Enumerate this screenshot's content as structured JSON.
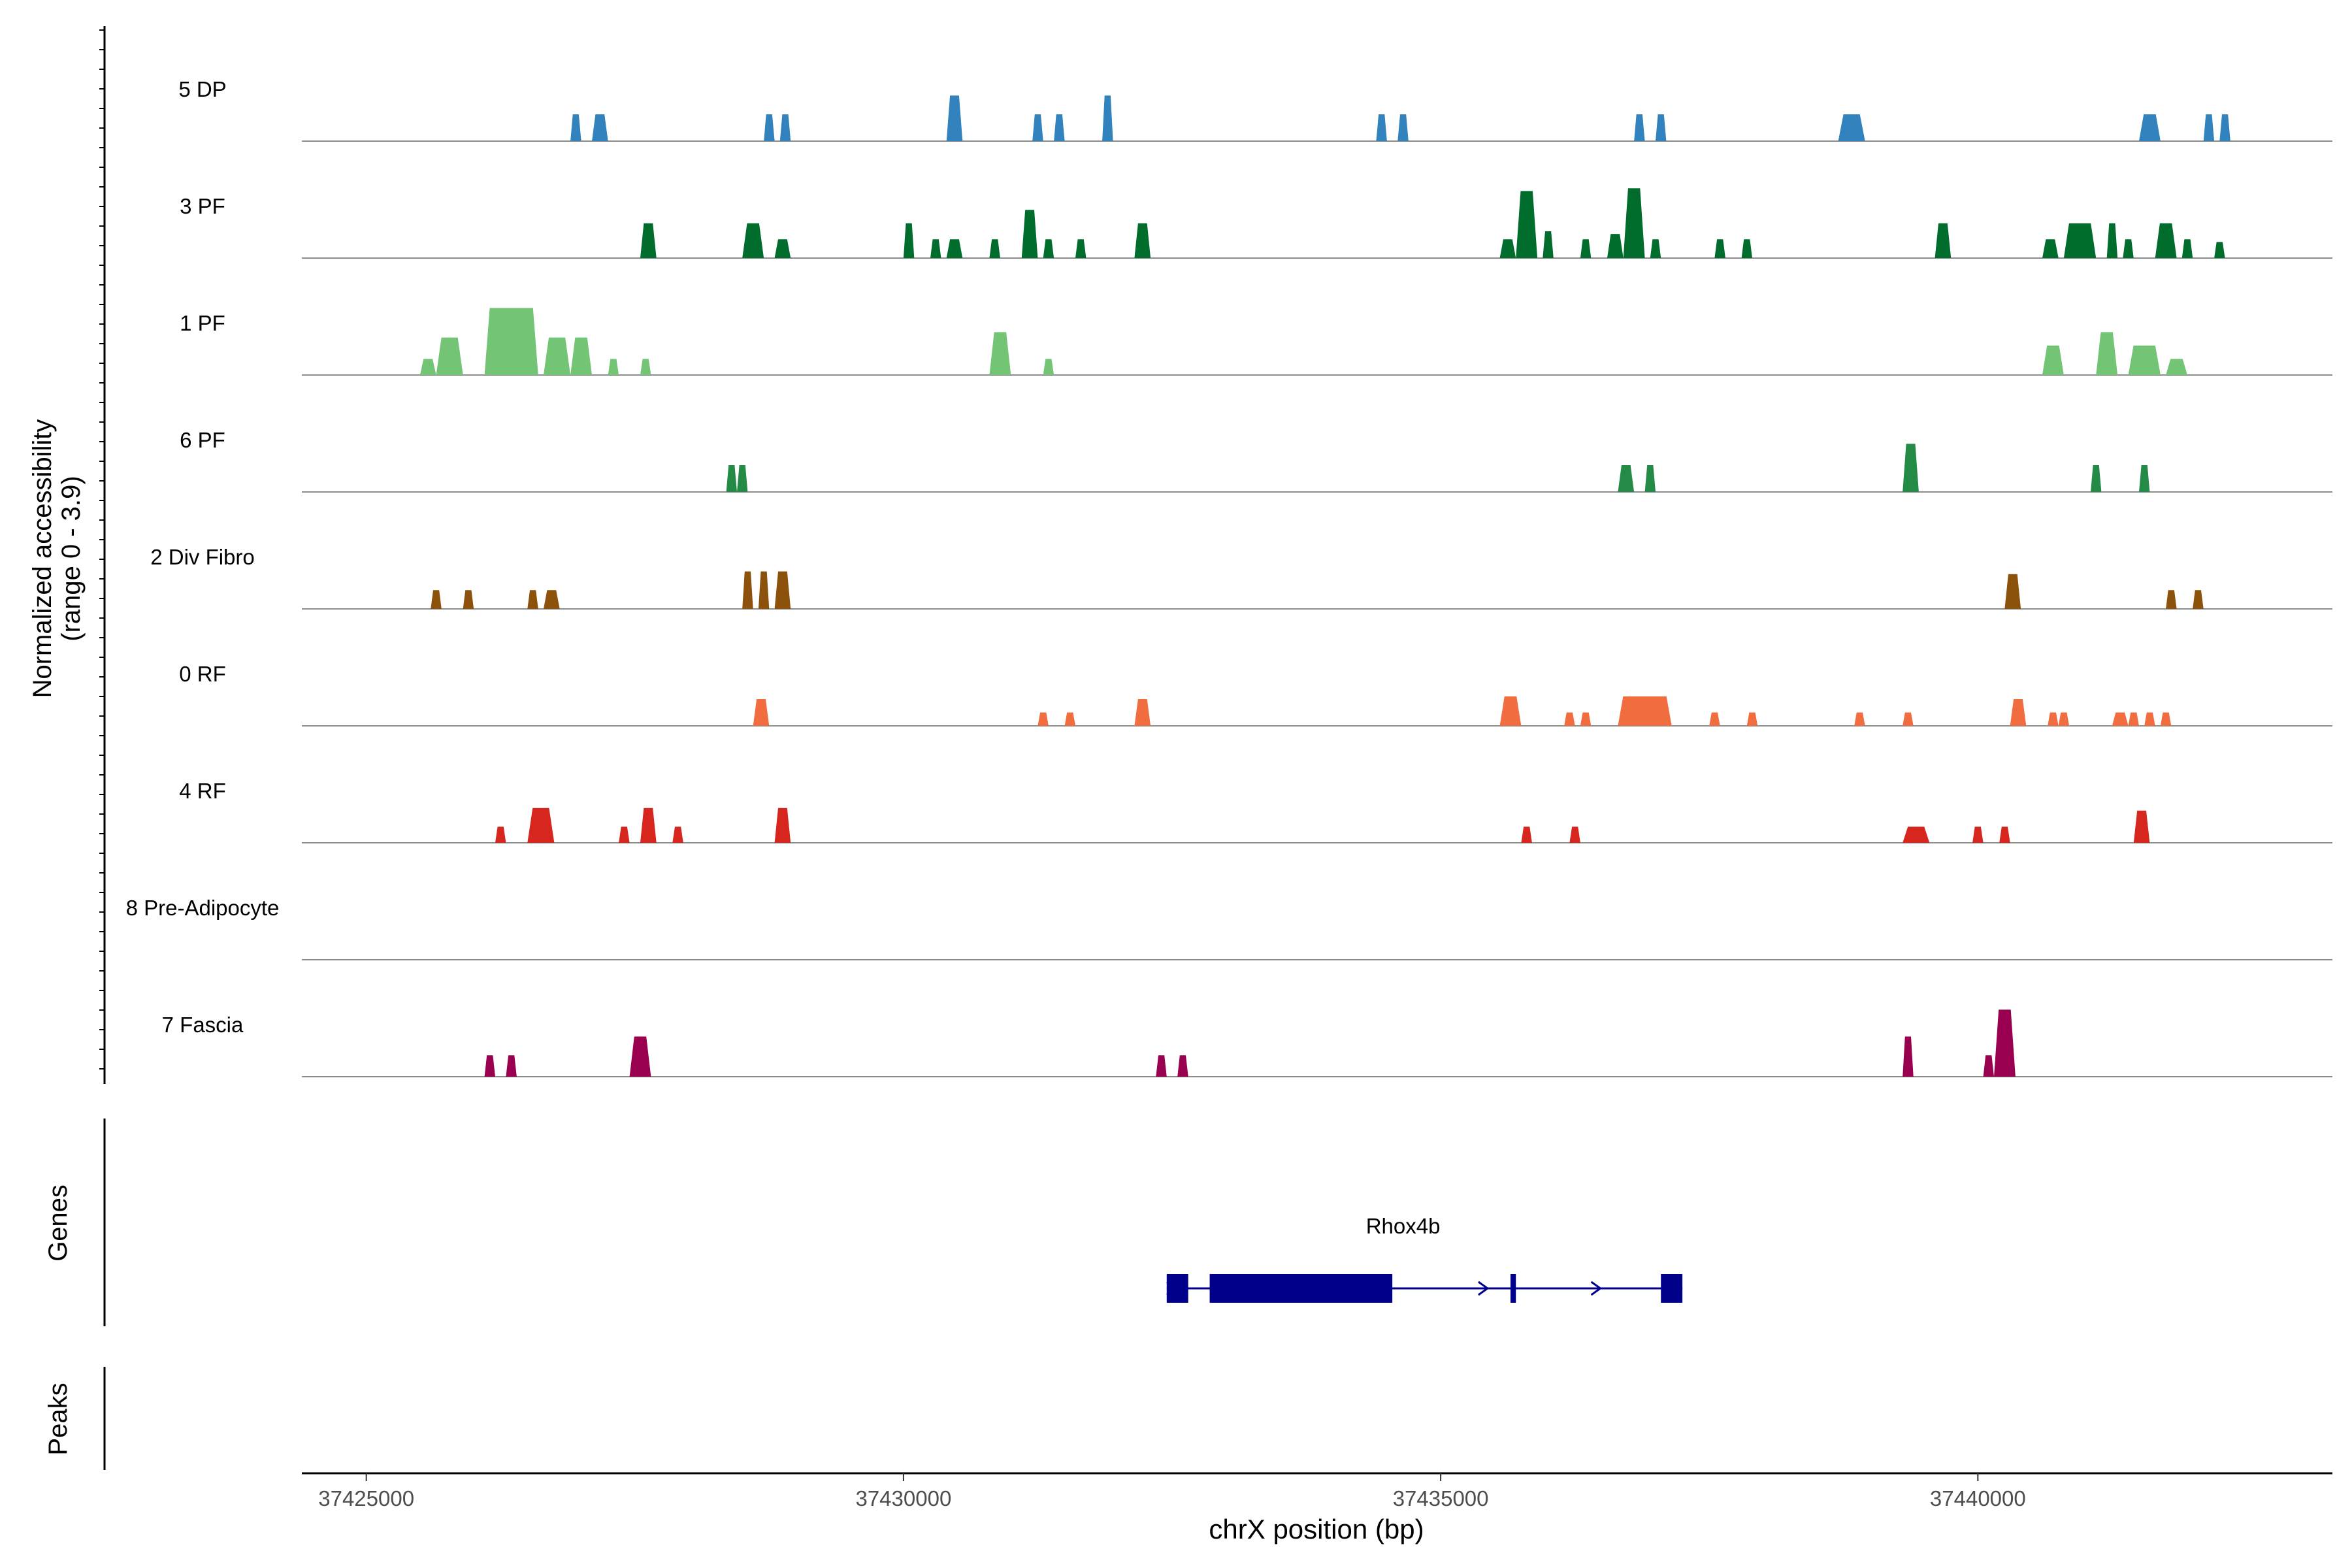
{
  "chart_data": {
    "type": "area",
    "title": "",
    "ylabel_line1": "Normalized accessibility",
    "ylabel_line2": "(range 0 - 3.9)",
    "xlabel": "chrX position (bp)",
    "genes_label": "Genes",
    "peaks_label": "Peaks",
    "xlim": [
      37424400,
      37443300
    ],
    "ylim": [
      0,
      3.9
    ],
    "x_ticks": [
      37425000,
      37430000,
      37435000,
      37440000
    ],
    "x_tick_labels": [
      "37425000",
      "37430000",
      "37435000",
      "37440000"
    ],
    "series": [
      {
        "name": "5 DP",
        "color": "#3182bd",
        "peaks": [
          [
            37426900,
            37427000,
            1.0
          ],
          [
            37427100,
            37427250,
            1.0
          ],
          [
            37428700,
            37428800,
            1.0
          ],
          [
            37428850,
            37428950,
            1.0
          ],
          [
            37430400,
            37430550,
            1.7
          ],
          [
            37431200,
            37431300,
            1.0
          ],
          [
            37431400,
            37431500,
            1.0
          ],
          [
            37431850,
            37431950,
            1.7
          ],
          [
            37434400,
            37434500,
            1.0
          ],
          [
            37434600,
            37434700,
            1.0
          ],
          [
            37436800,
            37436900,
            1.0
          ],
          [
            37437000,
            37437100,
            1.0
          ],
          [
            37438700,
            37438950,
            1.0
          ],
          [
            37441500,
            37441700,
            1.0
          ],
          [
            37442100,
            37442200,
            1.0
          ],
          [
            37442250,
            37442350,
            1.0
          ]
        ]
      },
      {
        "name": "3 PF",
        "color": "#006d2c",
        "peaks": [
          [
            37427550,
            37427700,
            1.3
          ],
          [
            37428500,
            37428700,
            1.3
          ],
          [
            37428800,
            37428950,
            0.7
          ],
          [
            37430000,
            37430100,
            1.3
          ],
          [
            37430250,
            37430350,
            0.7
          ],
          [
            37430400,
            37430550,
            0.7
          ],
          [
            37430800,
            37430900,
            0.7
          ],
          [
            37431100,
            37431250,
            1.8
          ],
          [
            37431300,
            37431400,
            0.7
          ],
          [
            37431600,
            37431700,
            0.7
          ],
          [
            37432150,
            37432300,
            1.3
          ],
          [
            37435550,
            37435700,
            0.7
          ],
          [
            37435700,
            37435900,
            2.5
          ],
          [
            37435950,
            37436050,
            1.0
          ],
          [
            37436300,
            37436400,
            0.7
          ],
          [
            37436550,
            37436700,
            0.9
          ],
          [
            37436700,
            37436900,
            2.6
          ],
          [
            37436950,
            37437050,
            0.7
          ],
          [
            37437550,
            37437650,
            0.7
          ],
          [
            37437800,
            37437900,
            0.7
          ],
          [
            37439600,
            37439750,
            1.3
          ],
          [
            37440600,
            37440750,
            0.7
          ],
          [
            37440800,
            37441100,
            1.3
          ],
          [
            37441200,
            37441300,
            1.3
          ],
          [
            37441350,
            37441450,
            0.7
          ],
          [
            37441650,
            37441850,
            1.3
          ],
          [
            37441900,
            37442000,
            0.7
          ],
          [
            37442200,
            37442300,
            0.6
          ]
        ]
      },
      {
        "name": "1 PF",
        "color": "#74c476",
        "peaks": [
          [
            37425500,
            37425650,
            0.6
          ],
          [
            37425650,
            37425900,
            1.4
          ],
          [
            37426100,
            37426600,
            2.5
          ],
          [
            37426650,
            37426900,
            1.4
          ],
          [
            37426900,
            37427100,
            1.4
          ],
          [
            37427250,
            37427350,
            0.6
          ],
          [
            37427550,
            37427650,
            0.6
          ],
          [
            37430800,
            37431000,
            1.6
          ],
          [
            37431300,
            37431400,
            0.6
          ],
          [
            37440600,
            37440800,
            1.1
          ],
          [
            37441100,
            37441300,
            1.6
          ],
          [
            37441400,
            37441700,
            1.1
          ],
          [
            37441750,
            37441950,
            0.6
          ]
        ]
      },
      {
        "name": "6 PF",
        "color": "#238b45",
        "peaks": [
          [
            37428350,
            37428450,
            1.0
          ],
          [
            37428450,
            37428550,
            1.0
          ],
          [
            37436650,
            37436800,
            1.0
          ],
          [
            37436900,
            37437000,
            1.0
          ],
          [
            37439300,
            37439450,
            1.8
          ],
          [
            37441050,
            37441150,
            1.0
          ],
          [
            37441500,
            37441600,
            1.0
          ]
        ]
      },
      {
        "name": "2 Div Fibro",
        "color": "#8c510a",
        "peaks": [
          [
            37425600,
            37425700,
            0.7
          ],
          [
            37425900,
            37426000,
            0.7
          ],
          [
            37426500,
            37426600,
            0.7
          ],
          [
            37426650,
            37426800,
            0.7
          ],
          [
            37428500,
            37428600,
            1.4
          ],
          [
            37428650,
            37428750,
            1.4
          ],
          [
            37428800,
            37428950,
            1.4
          ],
          [
            37440250,
            37440400,
            1.3
          ],
          [
            37441750,
            37441850,
            0.7
          ],
          [
            37442000,
            37442100,
            0.7
          ]
        ]
      },
      {
        "name": "0 RF",
        "color": "#f16d3f",
        "peaks": [
          [
            37428600,
            37428750,
            1.0
          ],
          [
            37431250,
            37431350,
            0.5
          ],
          [
            37431500,
            37431600,
            0.5
          ],
          [
            37432150,
            37432300,
            1.0
          ],
          [
            37435550,
            37435750,
            1.1
          ],
          [
            37436150,
            37436250,
            0.5
          ],
          [
            37436300,
            37436400,
            0.5
          ],
          [
            37436650,
            37437150,
            1.1
          ],
          [
            37437500,
            37437600,
            0.5
          ],
          [
            37437850,
            37437950,
            0.5
          ],
          [
            37438850,
            37438950,
            0.5
          ],
          [
            37439300,
            37439400,
            0.5
          ],
          [
            37440300,
            37440450,
            1.0
          ],
          [
            37440650,
            37440750,
            0.5
          ],
          [
            37440750,
            37440850,
            0.5
          ],
          [
            37441250,
            37441400,
            0.5
          ],
          [
            37441400,
            37441500,
            0.5
          ],
          [
            37441550,
            37441650,
            0.5
          ],
          [
            37441700,
            37441800,
            0.5
          ]
        ]
      },
      {
        "name": "4 RF",
        "color": "#d6261d",
        "peaks": [
          [
            37426200,
            37426300,
            0.6
          ],
          [
            37426500,
            37426750,
            1.3
          ],
          [
            37427350,
            37427450,
            0.6
          ],
          [
            37427550,
            37427700,
            1.3
          ],
          [
            37427850,
            37427950,
            0.6
          ],
          [
            37428800,
            37428950,
            1.3
          ],
          [
            37435750,
            37435850,
            0.6
          ],
          [
            37436200,
            37436300,
            0.6
          ],
          [
            37439300,
            37439550,
            0.6
          ],
          [
            37439950,
            37440050,
            0.6
          ],
          [
            37440200,
            37440300,
            0.6
          ],
          [
            37441450,
            37441600,
            1.2
          ]
        ]
      },
      {
        "name": "8 Pre-Adipocyte",
        "color": "#c51b8a",
        "peaks": []
      },
      {
        "name": "7 Fascia",
        "color": "#99004f",
        "peaks": [
          [
            37426100,
            37426200,
            0.8
          ],
          [
            37426300,
            37426400,
            0.8
          ],
          [
            37427450,
            37427650,
            1.5
          ],
          [
            37432350,
            37432450,
            0.8
          ],
          [
            37432550,
            37432650,
            0.8
          ],
          [
            37439300,
            37439400,
            1.5
          ],
          [
            37440050,
            37440150,
            0.8
          ],
          [
            37440150,
            37440350,
            2.5
          ]
        ]
      }
    ],
    "gene": {
      "name": "Rhox4b",
      "color": "#00008b",
      "start": 37432450,
      "end": 37437250,
      "strand": "+",
      "exons": [
        [
          37432450,
          37432650
        ],
        [
          37432850,
          37434550
        ],
        [
          37435650,
          37435700
        ],
        [
          37437050,
          37437250
        ]
      ],
      "arrows": [
        37432500,
        37435400,
        37436450
      ]
    }
  }
}
